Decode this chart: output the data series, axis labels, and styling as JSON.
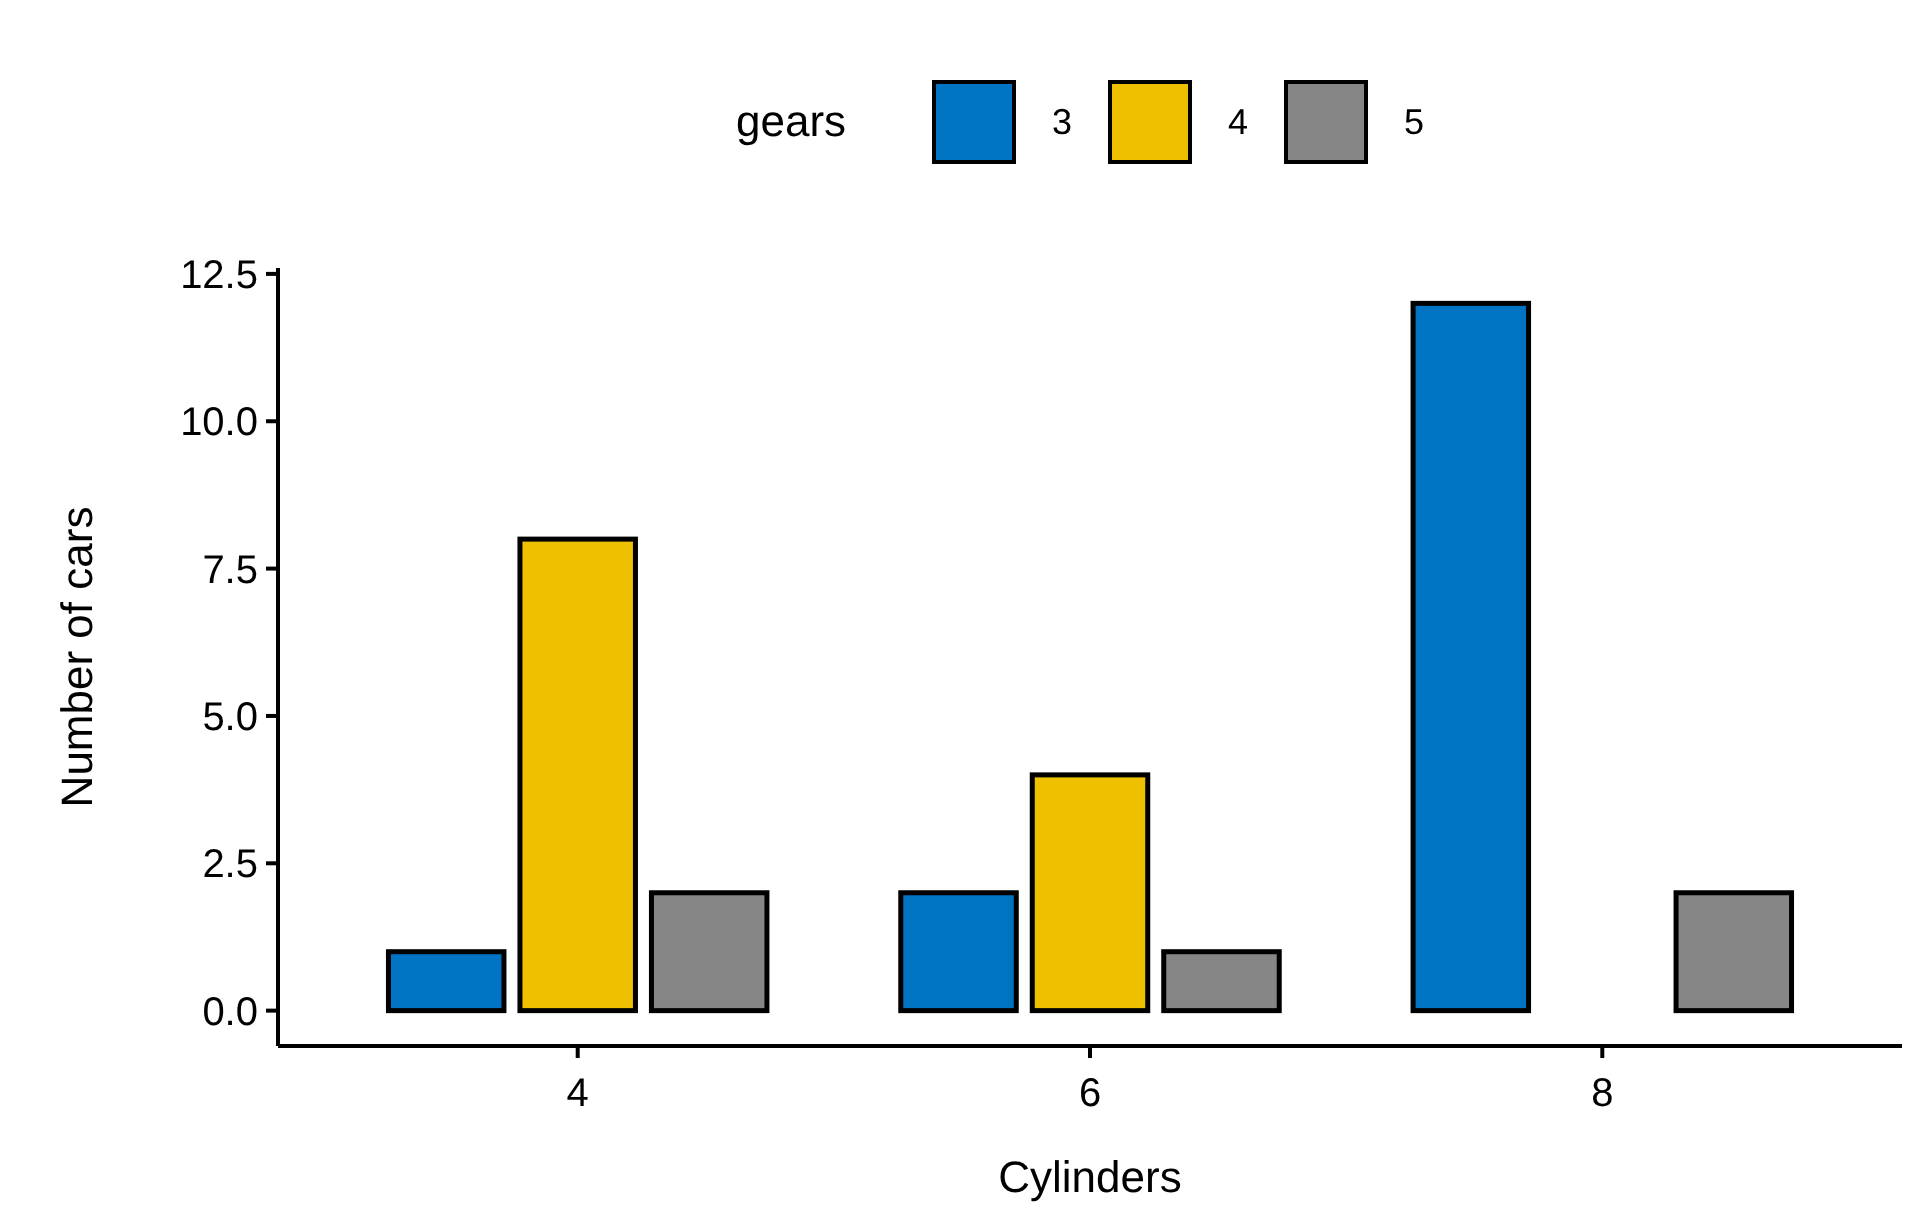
{
  "chart_data": {
    "type": "bar",
    "xlabel": "Cylinders",
    "ylabel": "Number of cars",
    "legend_title": "gears",
    "categories": [
      "4",
      "6",
      "8"
    ],
    "series": [
      {
        "name": "3",
        "color": "#0073c2",
        "values": [
          1,
          2,
          12
        ]
      },
      {
        "name": "4",
        "color": "#efc000",
        "values": [
          8,
          4,
          0
        ]
      },
      {
        "name": "5",
        "color": "#868686",
        "values": [
          2,
          1,
          2
        ]
      }
    ],
    "ylim": [
      -0.6,
      12.6
    ],
    "yticks": [
      {
        "value": 0,
        "label": "0.0"
      },
      {
        "value": 2.5,
        "label": "2.5"
      },
      {
        "value": 5,
        "label": "5.0"
      },
      {
        "value": 7.5,
        "label": "7.5"
      },
      {
        "value": 10,
        "label": "10.0"
      },
      {
        "value": 12.5,
        "label": "12.5"
      }
    ],
    "grid": false,
    "legend": "top"
  }
}
